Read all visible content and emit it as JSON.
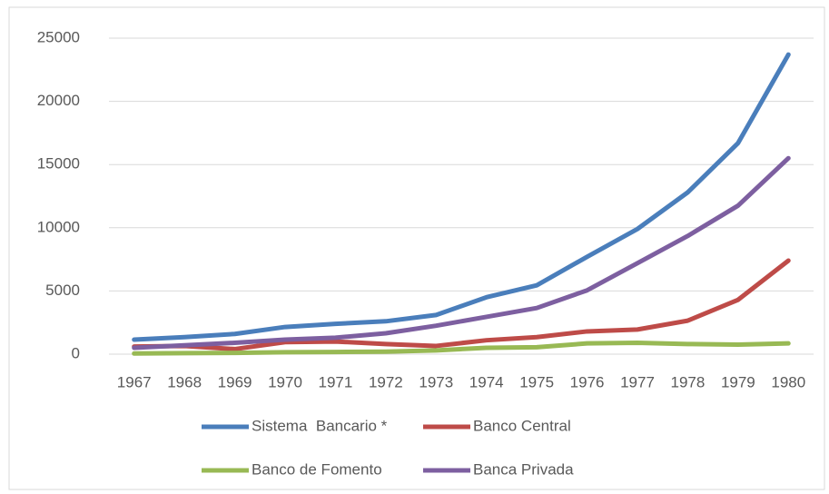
{
  "chart_data": {
    "type": "line",
    "categories": [
      "1967",
      "1968",
      "1969",
      "1970",
      "1971",
      "1972",
      "1973",
      "1974",
      "1975",
      "1976",
      "1977",
      "1978",
      "1979",
      "1980"
    ],
    "series": [
      {
        "name": "Sistema  Bancario *",
        "color": "#4a7ebb",
        "values": [
          1150,
          1350,
          1600,
          2150,
          2400,
          2600,
          3100,
          4500,
          5450,
          7700,
          9900,
          12800,
          16700,
          23700
        ]
      },
      {
        "name": "Banco Central",
        "color": "#be4b48",
        "values": [
          600,
          650,
          400,
          950,
          1000,
          800,
          650,
          1100,
          1350,
          1800,
          1950,
          2650,
          4300,
          7400
        ]
      },
      {
        "name": "Banco de Fomento",
        "color": "#98b954",
        "values": [
          50,
          80,
          100,
          150,
          170,
          200,
          300,
          500,
          550,
          850,
          900,
          800,
          750,
          850
        ]
      },
      {
        "name": "Banca Privada",
        "color": "#7d5fa0",
        "values": [
          500,
          700,
          900,
          1150,
          1300,
          1650,
          2250,
          2950,
          3650,
          5050,
          7200,
          9350,
          11750,
          15500
        ]
      }
    ],
    "ylim": [
      0,
      25000
    ],
    "yticks": [
      0,
      5000,
      10000,
      15000,
      20000,
      25000
    ],
    "grid": true,
    "legend": "bottom"
  }
}
